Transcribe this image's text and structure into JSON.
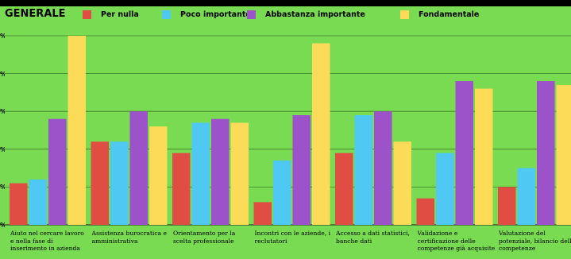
{
  "chart_data": {
    "type": "bar",
    "title": "GENERALE",
    "legend_position": "top",
    "grid": true,
    "ylim": [
      0,
      50
    ],
    "yticks": [
      0,
      10,
      20,
      30,
      40,
      50
    ],
    "ytick_labels": [
      "%",
      "%",
      "%",
      "%",
      "%",
      "%"
    ],
    "categories": [
      "Aiuto nel cercare lavoro e nella fase di inserimento in azienda",
      "Assistenza burocratica e amministrativa",
      "Orientamento per la scelta professionale",
      "Incontri con le aziende, i reclutatori",
      "Accesso a dati statistici, banche dati",
      "Validazione e certificazione delle competenze già acquisite",
      "Valutazione del potenziale, bilancio delle competenze"
    ],
    "series": [
      {
        "name": "Per nulla",
        "color": "#e04e43",
        "values": [
          11,
          22,
          19,
          6,
          19,
          7,
          10
        ]
      },
      {
        "name": "Poco importante",
        "color": "#4fc8f4",
        "values": [
          12,
          22,
          27,
          17,
          29,
          19,
          15
        ]
      },
      {
        "name": "Abbastanza importante",
        "color": "#9c52c8",
        "values": [
          28,
          30,
          28,
          29,
          30,
          38,
          38
        ]
      },
      {
        "name": "Fondamentale",
        "color": "#fcdb58",
        "values": [
          50,
          26,
          27,
          48,
          22,
          36,
          37
        ]
      }
    ]
  }
}
